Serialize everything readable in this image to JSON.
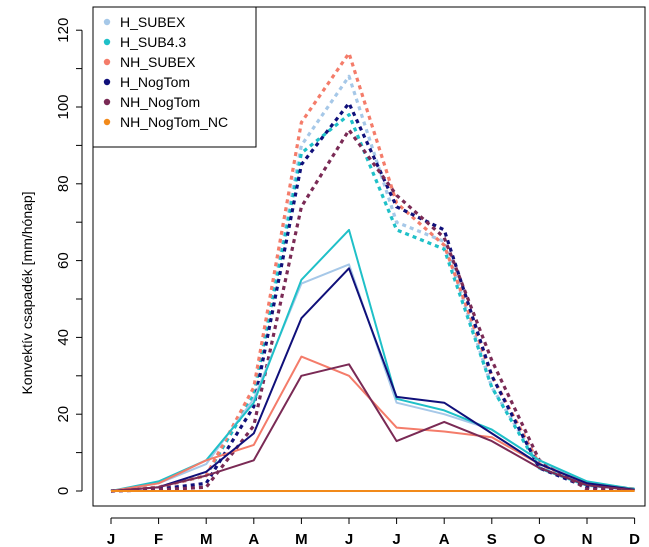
{
  "chart_data": {
    "type": "line",
    "ylabel": "Konvektív csapadék [mm/hónap]",
    "xlabel": "",
    "ylim": [
      0,
      120
    ],
    "yticks": [
      0,
      20,
      40,
      60,
      80,
      100,
      120
    ],
    "categories": [
      "J",
      "F",
      "M",
      "A",
      "M",
      "J",
      "J",
      "A",
      "S",
      "O",
      "N",
      "D"
    ],
    "legend_position": "top-left",
    "series": [
      {
        "name": "H_SUBEX",
        "color": "#a6c8e8",
        "style": "solid",
        "values": [
          0,
          2,
          7,
          24,
          54,
          59,
          23,
          20,
          16,
          8,
          2,
          0.5
        ]
      },
      {
        "name": "H_SUB4.3",
        "color": "#1fc0c8",
        "style": "solid",
        "values": [
          0,
          2.5,
          8,
          23,
          55,
          68,
          24,
          21,
          16,
          8,
          2.5,
          0.5
        ]
      },
      {
        "name": "NH_SUBEX",
        "color": "#f47c6a",
        "style": "solid",
        "values": [
          0,
          2,
          8,
          12,
          35,
          30,
          16.5,
          15.5,
          14,
          7,
          2,
          0.3
        ]
      },
      {
        "name": "H_NogTom",
        "color": "#10107a",
        "style": "solid",
        "values": [
          0,
          1,
          5,
          15,
          45,
          58,
          24.5,
          23,
          15,
          7,
          2,
          0.3
        ]
      },
      {
        "name": "NH_NogTom",
        "color": "#7a2a55",
        "style": "solid",
        "values": [
          0,
          1,
          4,
          8,
          30,
          33,
          13,
          18,
          13,
          6,
          1.5,
          0.2
        ]
      },
      {
        "name": "NH_NogTom_NC",
        "color": "#f28a1a",
        "style": "solid",
        "values": [
          0,
          0,
          0,
          0,
          0,
          0,
          0,
          0,
          0,
          0,
          0,
          0
        ]
      },
      {
        "name": "",
        "color": "#a6c8e8",
        "style": "dotted",
        "values": [
          0,
          1,
          4,
          25,
          90,
          108,
          70,
          65,
          27,
          7,
          2,
          0.5
        ]
      },
      {
        "name": "",
        "color": "#1fc0c8",
        "style": "dotted",
        "values": [
          0,
          1,
          4,
          25,
          88,
          98,
          68,
          63,
          27,
          6,
          1.5,
          0.5
        ]
      },
      {
        "name": "",
        "color": "#f47c6a",
        "style": "dotted",
        "values": [
          0,
          1,
          4,
          27,
          96,
          114,
          75,
          64,
          30,
          7,
          2,
          0.5
        ]
      },
      {
        "name": "",
        "color": "#10107a",
        "style": "dotted",
        "values": [
          0,
          0.5,
          2,
          22,
          85,
          101,
          74,
          68,
          30,
          6,
          1,
          0.3
        ]
      },
      {
        "name": "",
        "color": "#7a2a55",
        "style": "dotted",
        "values": [
          0,
          0.3,
          1,
          17,
          74,
          94,
          77,
          66,
          34,
          8,
          0.5,
          0.2
        ]
      }
    ]
  }
}
